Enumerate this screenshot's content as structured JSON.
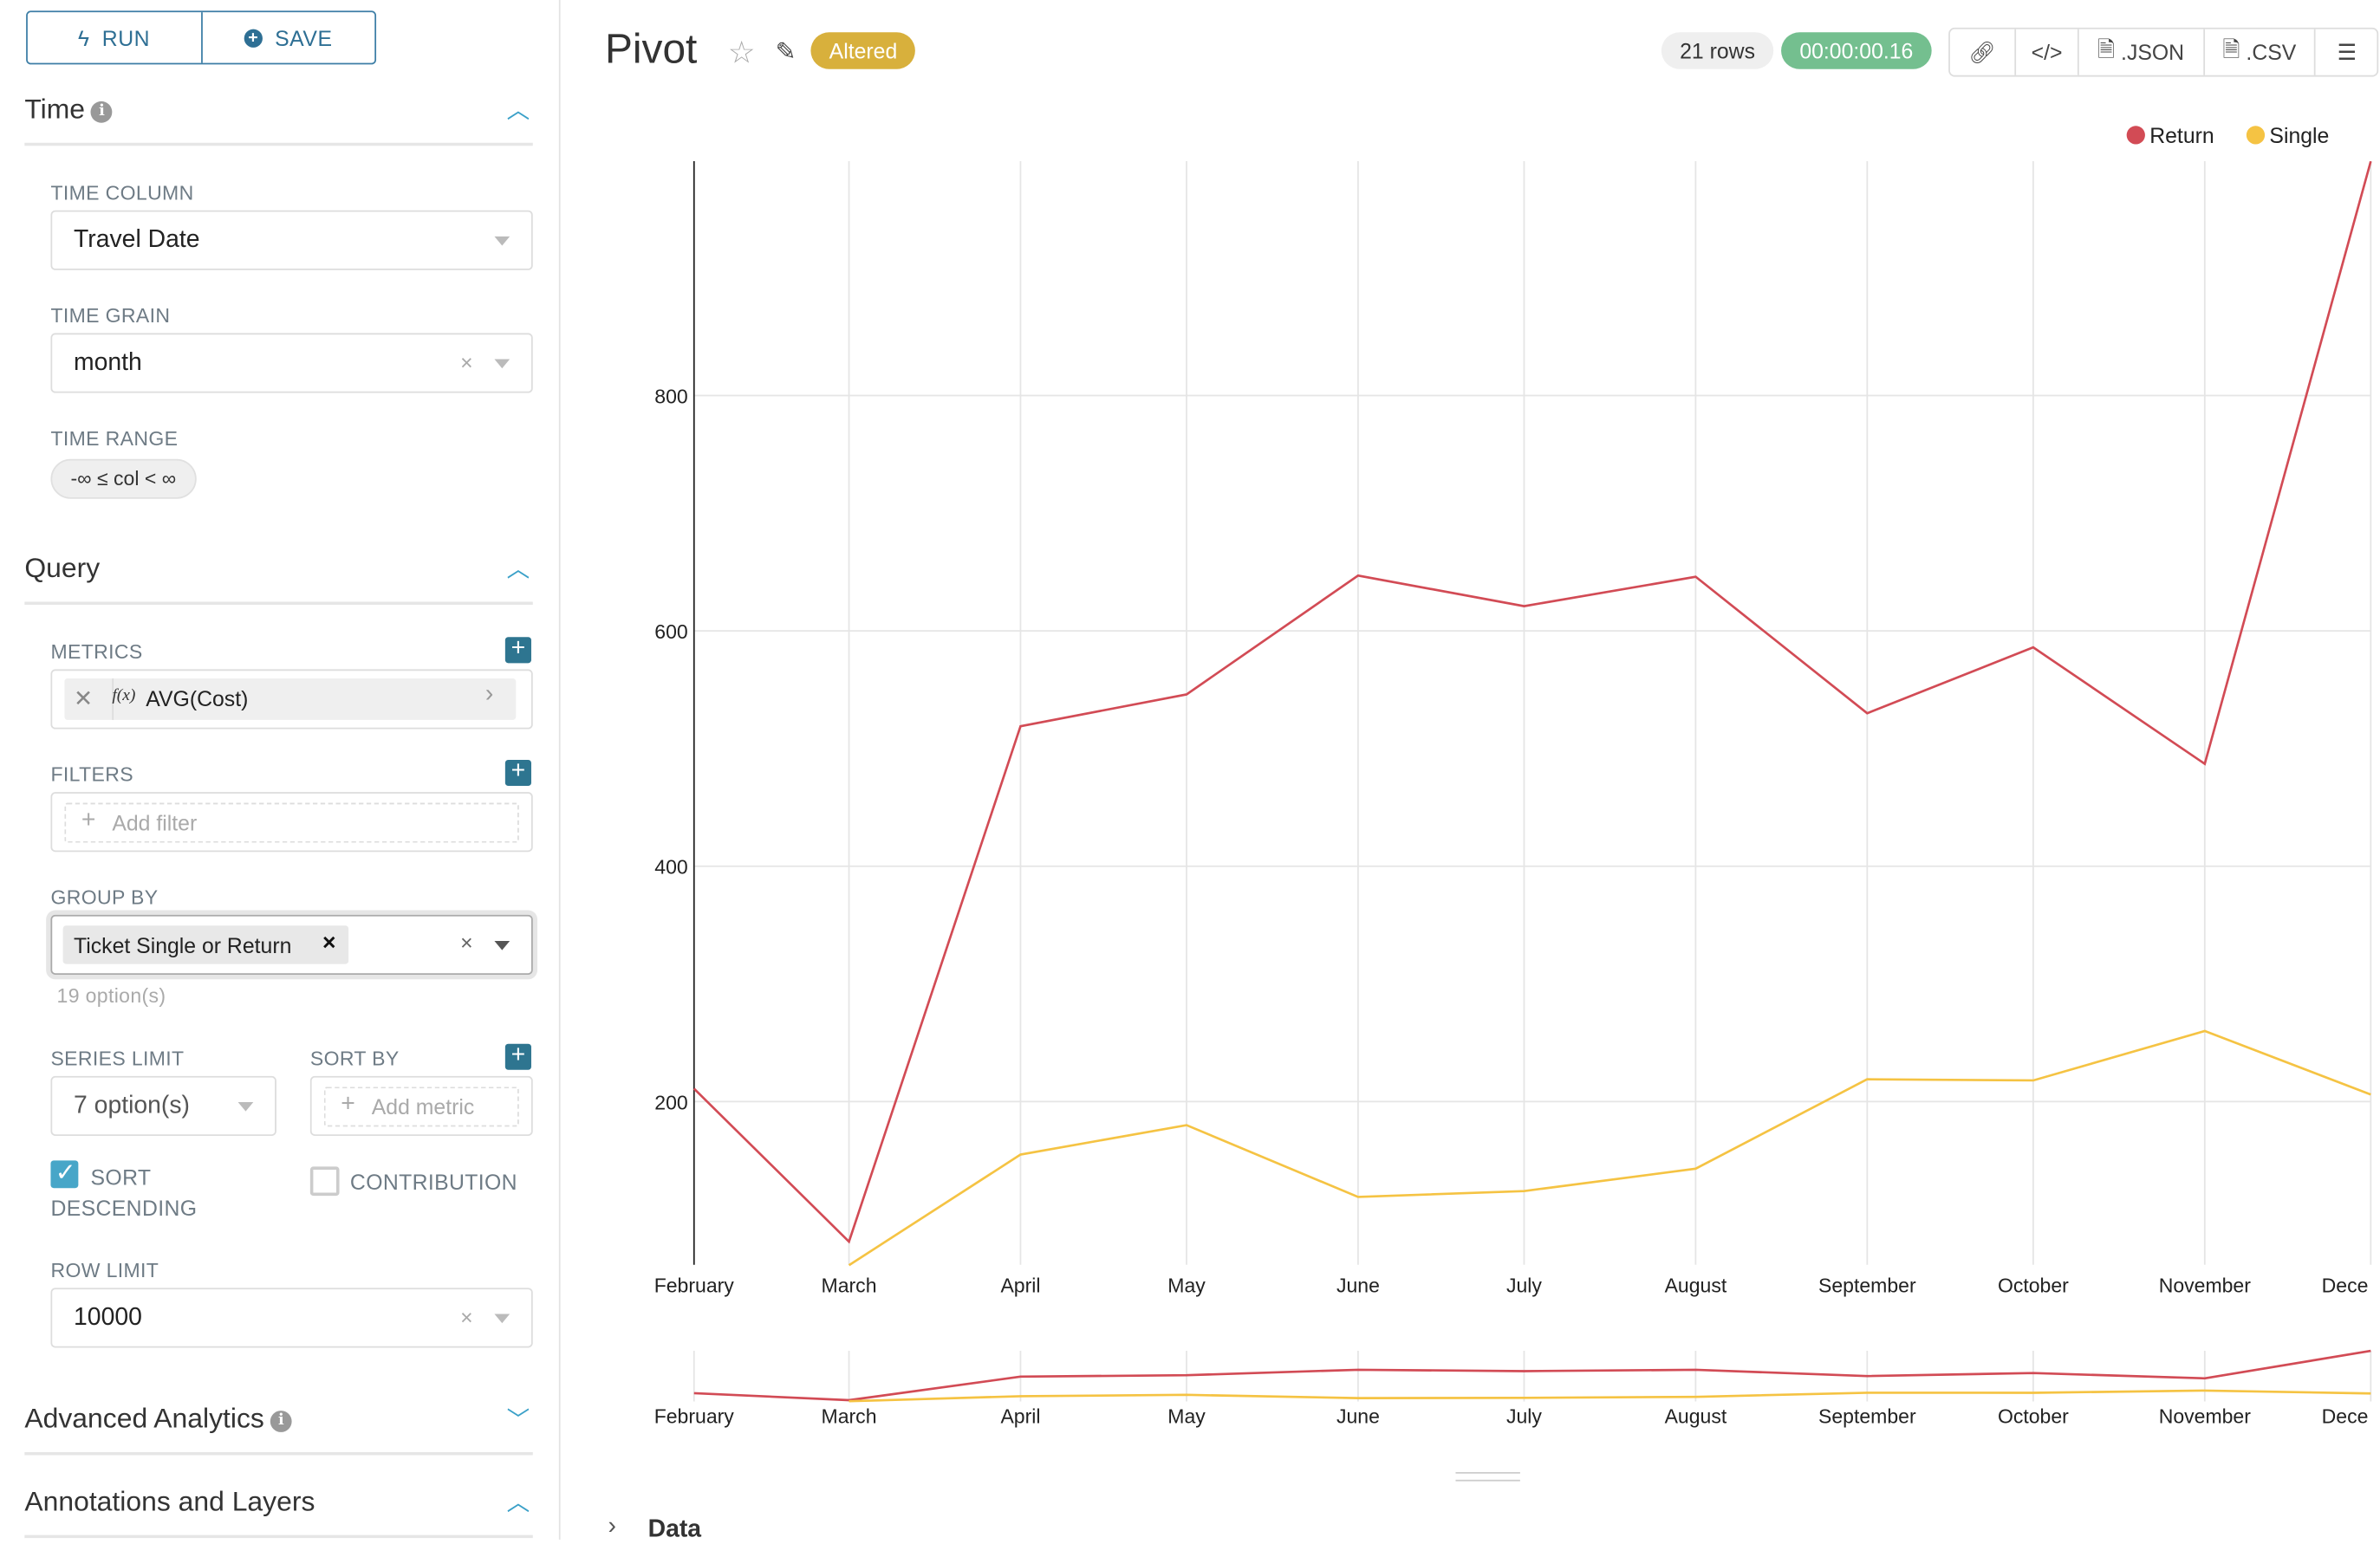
{
  "toolbar": {
    "run_label": "RUN",
    "save_label": "SAVE"
  },
  "time": {
    "section_title": "Time",
    "time_column_label": "TIME COLUMN",
    "time_column_value": "Travel Date",
    "time_grain_label": "TIME GRAIN",
    "time_grain_value": "month",
    "time_range_label": "TIME RANGE",
    "time_range_value": "-∞ ≤ col < ∞"
  },
  "query": {
    "section_title": "Query",
    "metrics_label": "METRICS",
    "metric_fx": "f(x)",
    "metric_value": "AVG(Cost)",
    "filters_label": "FILTERS",
    "filters_placeholder": "Add filter",
    "group_by_label": "GROUP BY",
    "group_by_tag": "Ticket Single or Return",
    "group_by_hint": "19 option(s)",
    "series_limit_label": "SERIES LIMIT",
    "series_limit_value": "7 option(s)",
    "sort_by_label": "SORT BY",
    "sort_by_placeholder": "Add metric",
    "sort_desc_label_1": "SORT",
    "sort_desc_label_2": "DESCENDING",
    "sort_desc_checked": true,
    "contribution_label": "CONTRIBUTION",
    "contribution_checked": false,
    "row_limit_label": "ROW LIMIT",
    "row_limit_value": "10000"
  },
  "sections": {
    "advanced": "Advanced Analytics",
    "annotations": "Annotations and Layers"
  },
  "header": {
    "title": "Pivot",
    "status_badge": "Altered",
    "rows": "21 rows",
    "timer": "00:00:00.16",
    "json_label": ".JSON",
    "csv_label": ".CSV"
  },
  "data_panel": {
    "label": "Data"
  },
  "colors": {
    "accent": "#2e7590",
    "altered": "#d8b03c",
    "timer": "#74bf8f",
    "return": "#d24b55",
    "single": "#f5c343"
  },
  "chart_data": {
    "type": "line",
    "categories": [
      "February",
      "March",
      "April",
      "May",
      "June",
      "July",
      "August",
      "September",
      "October",
      "November",
      "December"
    ],
    "x_tick_labels": [
      "February",
      "March",
      "April",
      "May",
      "June",
      "July",
      "August",
      "September",
      "October",
      "November",
      "Dece"
    ],
    "y_ticks": [
      200,
      400,
      600,
      800
    ],
    "ylim": [
      61,
      999
    ],
    "grid": true,
    "legend_position": "top-right",
    "series": [
      {
        "name": "Return",
        "color": "#d24b55",
        "values": [
          211,
          81,
          519,
          546,
          647,
          621,
          646,
          530,
          586,
          487,
          999
        ]
      },
      {
        "name": "Single",
        "color": "#f5c343",
        "values": [
          null,
          61,
          155,
          180,
          119,
          124,
          143,
          219,
          218,
          260,
          206
        ]
      }
    ]
  }
}
